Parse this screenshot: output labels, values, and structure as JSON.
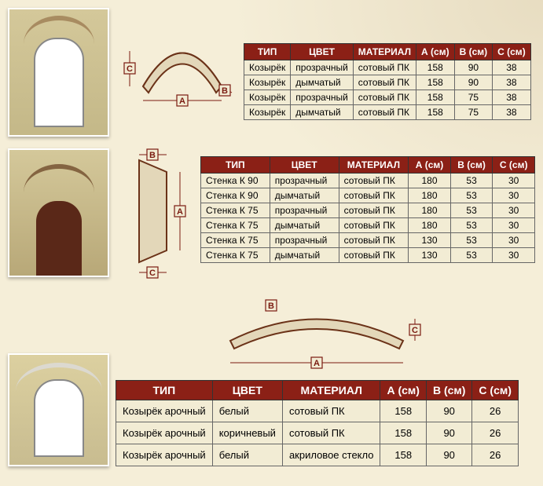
{
  "headers": {
    "type": "ТИП",
    "color": "ЦВЕТ",
    "material": "МАТЕРИАЛ",
    "a": "А (см)",
    "b": "В (см)",
    "c": "С (см)"
  },
  "dim_labels": {
    "a": "A",
    "b": "B",
    "c": "C"
  },
  "colors": {
    "header_bg": "#8b2016",
    "header_fg": "#ffffff",
    "row_bg": "#f2ecd4",
    "border": "#666666",
    "diagram_stroke": "#7a1a10",
    "shape_stroke": "#6b3218"
  },
  "table1": {
    "rows": [
      {
        "type": "Козырёк",
        "color": "прозрачный",
        "material": "сотовый ПК",
        "a": "158",
        "b": "90",
        "c": "38"
      },
      {
        "type": "Козырёк",
        "color": "дымчатый",
        "material": "сотовый ПК",
        "a": "158",
        "b": "90",
        "c": "38"
      },
      {
        "type": "Козырёк",
        "color": "прозрачный",
        "material": "сотовый ПК",
        "a": "158",
        "b": "75",
        "c": "38"
      },
      {
        "type": "Козырёк",
        "color": "дымчатый",
        "material": "сотовый ПК",
        "a": "158",
        "b": "75",
        "c": "38"
      }
    ]
  },
  "table2": {
    "rows": [
      {
        "type": "Стенка К 90",
        "color": "прозрачный",
        "material": "сотовый ПК",
        "a": "180",
        "b": "53",
        "c": "30"
      },
      {
        "type": "Стенка К 90",
        "color": "дымчатый",
        "material": "сотовый ПК",
        "a": "180",
        "b": "53",
        "c": "30"
      },
      {
        "type": "Стенка К 75",
        "color": "прозрачный",
        "material": "сотовый ПК",
        "a": "180",
        "b": "53",
        "c": "30"
      },
      {
        "type": "Стенка К 75",
        "color": "дымчатый",
        "material": "сотовый ПК",
        "a": "180",
        "b": "53",
        "c": "30"
      },
      {
        "type": "Стенка К 75",
        "color": "прозрачный",
        "material": "сотовый ПК",
        "a": "130",
        "b": "53",
        "c": "30"
      },
      {
        "type": "Стенка К 75",
        "color": "дымчатый",
        "material": "сотовый ПК",
        "a": "130",
        "b": "53",
        "c": "30"
      }
    ]
  },
  "table3": {
    "rows": [
      {
        "type": "Козырёк арочный",
        "color": "белый",
        "material": "сотовый ПК",
        "a": "158",
        "b": "90",
        "c": "26"
      },
      {
        "type": "Козырёк арочный",
        "color": "коричневый",
        "material": "сотовый ПК",
        "a": "158",
        "b": "90",
        "c": "26"
      },
      {
        "type": "Козырёк арочный",
        "color": "белый",
        "material": "акриловое стекло",
        "a": "158",
        "b": "90",
        "c": "26"
      }
    ]
  }
}
